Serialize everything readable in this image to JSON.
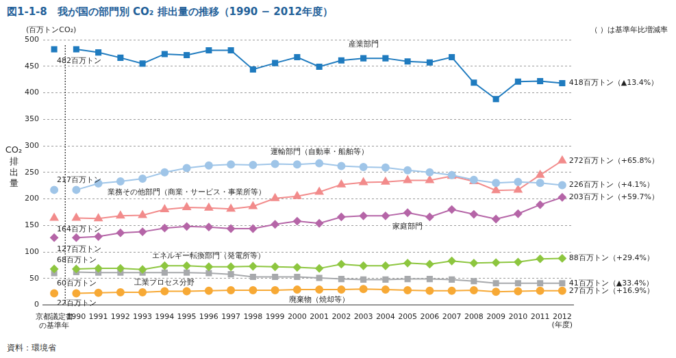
{
  "chart_data": {
    "type": "line",
    "title": "図1-1-8　我が国の部門別 CO₂ 排出量の推移（1990 − 2012年度）",
    "y_unit": "(百万トンCO₂)",
    "y_label": "CO₂排出量",
    "x_label": "(年度)",
    "note": "（ ）は基準年比増減率",
    "source": "資料：環境省",
    "categories": [
      "京都議定書\nの基準年",
      "1990",
      "1991",
      "1992",
      "1993",
      "1994",
      "1995",
      "1996",
      "1997",
      "1998",
      "1999",
      "2000",
      "2001",
      "2002",
      "2003",
      "2004",
      "2005",
      "2006",
      "2007",
      "2008",
      "2009",
      "2010",
      "2011",
      "2012"
    ],
    "ylim": [
      0,
      500
    ],
    "yticks": [
      0,
      50,
      100,
      150,
      200,
      250,
      300,
      350,
      400,
      450,
      500
    ],
    "grid": true,
    "series": [
      {
        "name": "産業部門",
        "color": "#1f7bbf",
        "marker": "square",
        "start_label": "482百万トン",
        "end_label": "418百万トン（▲13.4%）",
        "values": [
          482,
          482,
          476,
          466,
          455,
          473,
          471,
          480,
          480,
          444,
          456,
          467,
          449,
          461,
          465,
          465,
          459,
          457,
          467,
          419,
          388,
          421,
          422,
          418
        ]
      },
      {
        "name": "運輸部門（自動車・船舶等）",
        "color": "#9fc5e8",
        "marker": "circle",
        "start_label": "217百万トン",
        "end_label": "226百万トン（+4.1%）",
        "values": [
          217,
          217,
          229,
          233,
          238,
          250,
          258,
          263,
          265,
          264,
          266,
          265,
          267,
          262,
          260,
          259,
          254,
          250,
          245,
          236,
          230,
          232,
          230,
          226
        ]
      },
      {
        "name": "業務その他部門（商業・サービス・事業所等）",
        "color": "#f28b8b",
        "marker": "triangle",
        "start_label": "164百万トン",
        "end_label": "272百万トン（+65.8%）",
        "values": [
          164,
          164,
          163,
          168,
          169,
          180,
          184,
          183,
          181,
          186,
          201,
          205,
          213,
          227,
          231,
          232,
          235,
          235,
          243,
          233,
          216,
          217,
          245,
          272
        ]
      },
      {
        "name": "家庭部門",
        "color": "#b565a7",
        "marker": "diamond",
        "start_label": "127百万トン",
        "end_label": "203百万トン（+59.7%）",
        "values": [
          127,
          127,
          129,
          136,
          138,
          145,
          148,
          147,
          144,
          144,
          152,
          158,
          154,
          166,
          168,
          168,
          174,
          166,
          180,
          171,
          162,
          172,
          189,
          203
        ]
      },
      {
        "name": "エネルギー転換部門（発電所等）",
        "color": "#8dc63f",
        "marker": "diamond",
        "start_label": "68百万トン",
        "end_label": "88百万トン（+29.4%）",
        "values": [
          68,
          68,
          69,
          69,
          67,
          74,
          74,
          72,
          72,
          73,
          72,
          71,
          69,
          77,
          74,
          74,
          79,
          77,
          83,
          79,
          80,
          81,
          87,
          88
        ]
      },
      {
        "name": "工業プロセス分野",
        "color": "#a7a9ac",
        "marker": "square",
        "start_label": "60百万トン",
        "end_label": "41百万トン（▲33.4%）",
        "values": [
          60,
          62,
          61,
          61,
          61,
          61,
          61,
          60,
          58,
          53,
          53,
          53,
          51,
          49,
          48,
          48,
          49,
          49,
          48,
          45,
          41,
          41,
          41,
          41
        ]
      },
      {
        "name": "廃棄物（焼却等）",
        "color": "#f7a935",
        "marker": "circle",
        "start_label": "22百万トン",
        "end_label": "27百万トン（+16.9%）",
        "values": [
          22,
          22,
          23,
          24,
          24,
          26,
          26,
          27,
          28,
          28,
          28,
          29,
          29,
          29,
          30,
          29,
          28,
          27,
          27,
          28,
          25,
          26,
          27,
          27
        ]
      }
    ]
  }
}
